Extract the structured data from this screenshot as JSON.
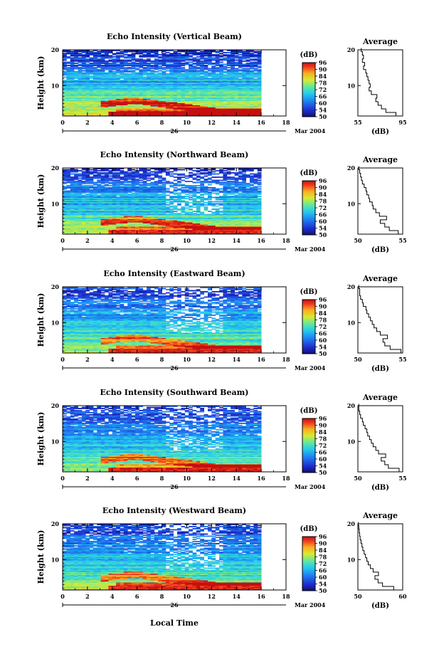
{
  "figure": {
    "xlabel": "Local Time",
    "date_label": "Mar 2004",
    "day_label": "26",
    "avg_title": "Average",
    "avg_xlabel": "(dB)",
    "colorbar_unit": "(dB)",
    "colorbar_ticks": [
      "50",
      "54",
      "60",
      "66",
      "72",
      "78",
      "84",
      "90",
      "96"
    ]
  },
  "chart_data": [
    {
      "type": "heatmap",
      "title": "Echo Intensity (Vertical Beam)",
      "ylabel": "Height (km)",
      "xlim": [
        0,
        18
      ],
      "ylim": [
        1.5,
        20
      ],
      "xticks": [
        "0",
        "2",
        "4",
        "6",
        "8",
        "10",
        "12",
        "14",
        "16",
        "18"
      ],
      "yticks": [
        "10",
        "20"
      ],
      "data_end_hour": 16,
      "colorscale_db": [
        50,
        96
      ],
      "average_profile": {
        "xlim": [
          55,
          95
        ],
        "xticks": [
          "55",
          "95"
        ],
        "height_km": [
          2,
          3,
          4,
          5,
          6,
          7,
          8,
          9,
          10,
          11,
          12,
          13,
          14,
          15,
          16,
          17,
          18,
          19,
          20
        ],
        "db": [
          89,
          80,
          76,
          73,
          71,
          72,
          67,
          65,
          66,
          65,
          64,
          63,
          62,
          60,
          61,
          59,
          60,
          59,
          58
        ]
      }
    },
    {
      "type": "heatmap",
      "title": "Echo Intensity (Northward Beam)",
      "ylabel": "Height (km)",
      "xlim": [
        0,
        18
      ],
      "ylim": [
        1.5,
        20
      ],
      "xticks": [
        "0",
        "2",
        "4",
        "6",
        "8",
        "10",
        "12",
        "14",
        "16",
        "18"
      ],
      "yticks": [
        "10",
        "20"
      ],
      "data_end_hour": 16,
      "colorscale_db": [
        50,
        96
      ],
      "average_profile": {
        "xlim": [
          50,
          55
        ],
        "xticks": [
          "50",
          "55"
        ],
        "height_km": [
          2,
          3,
          4,
          5,
          6,
          7,
          8,
          9,
          10,
          11,
          12,
          13,
          14,
          15,
          16,
          17,
          18,
          19,
          20
        ],
        "db": [
          54.5,
          53.5,
          53,
          52.5,
          53.2,
          52.4,
          52,
          51.7,
          51.6,
          51.3,
          51.2,
          51,
          50.9,
          50.7,
          50.5,
          50.4,
          50.3,
          50.2,
          50.1
        ]
      }
    },
    {
      "type": "heatmap",
      "title": "Echo Intensity (Eastward Beam)",
      "ylabel": "Height (km)",
      "xlim": [
        0,
        18
      ],
      "ylim": [
        1.5,
        20
      ],
      "xticks": [
        "0",
        "2",
        "4",
        "6",
        "8",
        "10",
        "12",
        "14",
        "16",
        "18"
      ],
      "yticks": [
        "10",
        "20"
      ],
      "data_end_hour": 16,
      "colorscale_db": [
        50,
        96
      ],
      "average_profile": {
        "xlim": [
          50,
          55
        ],
        "xticks": [
          "50",
          "55"
        ],
        "height_km": [
          2,
          3,
          4,
          5,
          6,
          7,
          8,
          9,
          10,
          11,
          12,
          13,
          14,
          15,
          16,
          17,
          18,
          19,
          20
        ],
        "db": [
          54.8,
          53.6,
          53,
          52.8,
          53.3,
          52.5,
          52.1,
          51.8,
          51.6,
          51.4,
          51.2,
          51,
          50.9,
          50.6,
          50.5,
          50.3,
          50.2,
          50.2,
          50.1
        ]
      }
    },
    {
      "type": "heatmap",
      "title": "Echo Intensity (Southward Beam)",
      "ylabel": "Height (km)",
      "xlim": [
        0,
        18
      ],
      "ylim": [
        1.5,
        20
      ],
      "xticks": [
        "0",
        "2",
        "4",
        "6",
        "8",
        "10",
        "12",
        "14",
        "16",
        "18"
      ],
      "yticks": [
        "10",
        "20"
      ],
      "data_end_hour": 16,
      "colorscale_db": [
        50,
        96
      ],
      "average_profile": {
        "xlim": [
          50,
          55
        ],
        "xticks": [
          "50",
          "55"
        ],
        "height_km": [
          2,
          3,
          4,
          5,
          6,
          7,
          8,
          9,
          10,
          11,
          12,
          13,
          14,
          15,
          16,
          17,
          18,
          19,
          20
        ],
        "db": [
          54.6,
          53.4,
          53,
          52.6,
          53.1,
          52.3,
          52,
          51.7,
          51.5,
          51.3,
          51.1,
          51,
          50.8,
          50.6,
          50.5,
          50.3,
          50.2,
          50.1,
          50.1
        ]
      }
    },
    {
      "type": "heatmap",
      "title": "Echo Intensity (Westward Beam)",
      "ylabel": "Height (km)",
      "xlim": [
        0,
        18
      ],
      "ylim": [
        1.5,
        20
      ],
      "xticks": [
        "0",
        "2",
        "4",
        "6",
        "8",
        "10",
        "12",
        "14",
        "16",
        "18"
      ],
      "yticks": [
        "10",
        "20"
      ],
      "data_end_hour": 16,
      "colorscale_db": [
        50,
        96
      ],
      "average_profile": {
        "xlim": [
          50,
          60
        ],
        "xticks": [
          "50",
          "60"
        ],
        "height_km": [
          2,
          3,
          4,
          5,
          6,
          7,
          8,
          9,
          10,
          11,
          12,
          13,
          14,
          15,
          16,
          17,
          18,
          19,
          20
        ],
        "db": [
          58,
          55.5,
          54.5,
          53.8,
          54.6,
          53.4,
          52.8,
          52.3,
          52,
          51.7,
          51.4,
          51.1,
          50.9,
          50.7,
          50.5,
          50.4,
          50.3,
          50.2,
          50.1
        ]
      }
    }
  ]
}
